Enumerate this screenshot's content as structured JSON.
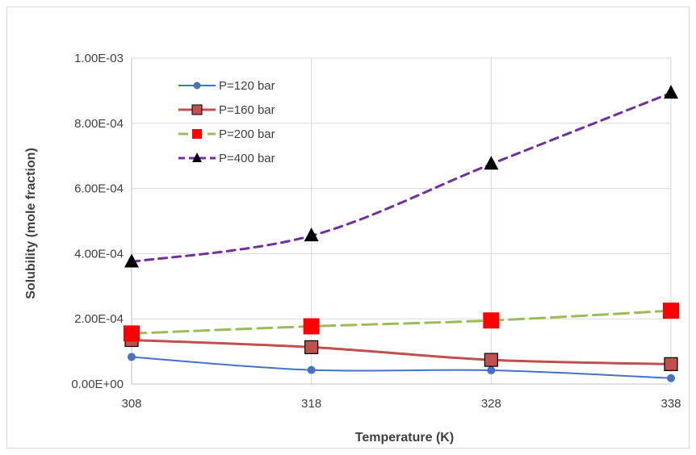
{
  "chart_data": {
    "type": "line",
    "title": "",
    "xlabel": "Temperature (K)",
    "ylabel": "Solubility (mole fraction)",
    "x": [
      308,
      318,
      328,
      338
    ],
    "xlim": [
      308,
      338
    ],
    "ylim": [
      0,
      0.001
    ],
    "y_ticks": [
      0,
      0.0002,
      0.0004,
      0.0006,
      0.0008,
      0.001
    ],
    "x_tick_labels": [
      "308",
      "318",
      "328",
      "338"
    ],
    "y_tick_labels": [
      "0.00E+00",
      "2.00E-04",
      "4.00E-04",
      "6.00E-04",
      "8.00E-04",
      "1.00E-03"
    ],
    "grid": "horizontal",
    "legend_position": "top-left",
    "series": [
      {
        "name": "P=120 bar",
        "values": [
          8.3e-05,
          4.3e-05,
          4.2e-05,
          1.8e-05
        ],
        "color": "#4472C4",
        "marker": "circle",
        "line": "solid"
      },
      {
        "name": "P=160 bar",
        "values": [
          0.000135,
          0.000113,
          7.4e-05,
          6.1e-05
        ],
        "color": "#C0504D",
        "marker": "square-outline",
        "line": "solid"
      },
      {
        "name": "P=200 bar",
        "values": [
          0.000155,
          0.000177,
          0.000195,
          0.000225
        ],
        "color": "#9BBB59",
        "marker": "square-red",
        "line": "dashed"
      },
      {
        "name": "P=400 bar",
        "values": [
          0.000375,
          0.000455,
          0.000675,
          0.000893
        ],
        "color": "#7030A0",
        "marker": "triangle",
        "line": "dashed"
      }
    ]
  }
}
